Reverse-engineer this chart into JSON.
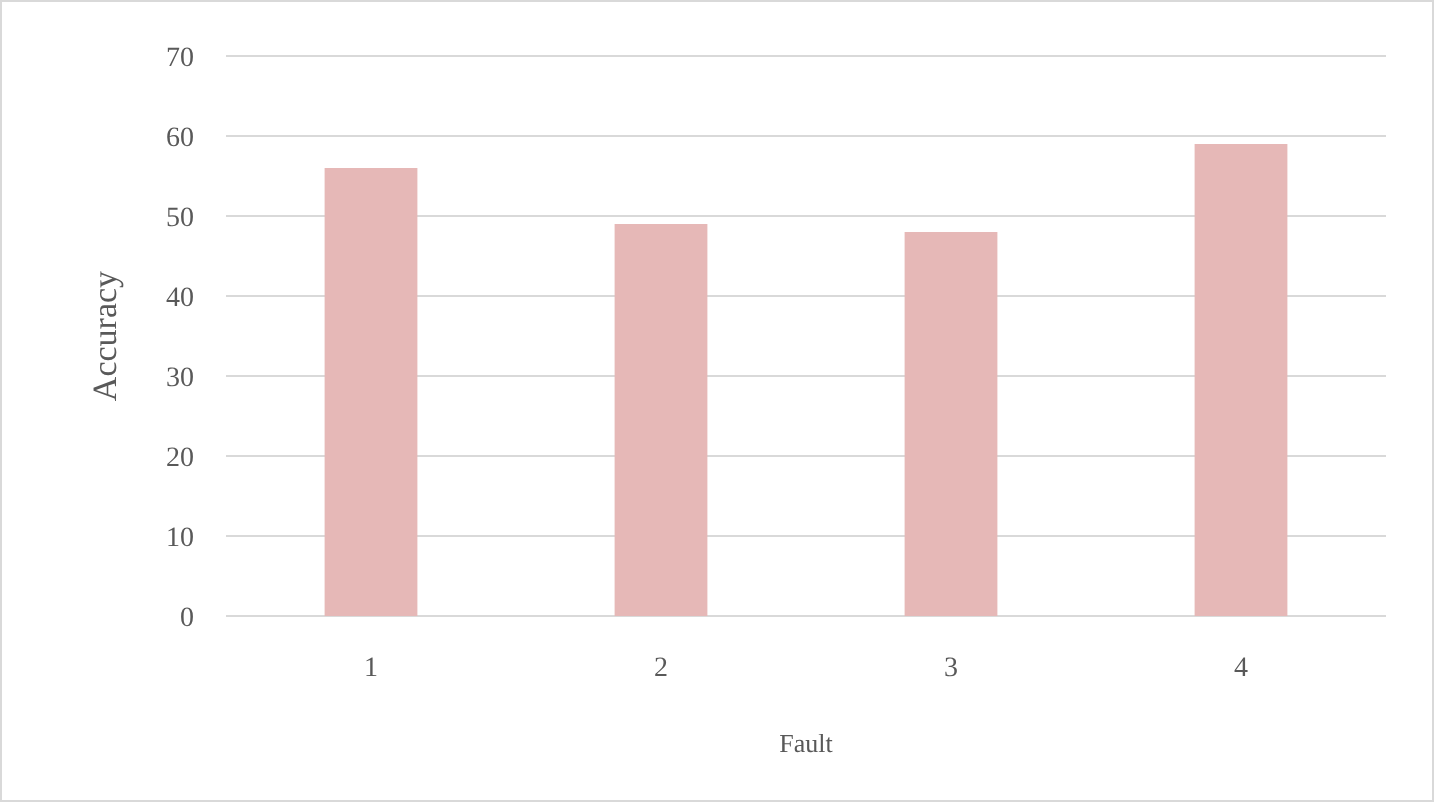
{
  "chart_data": {
    "type": "bar",
    "xlabel": "Fault",
    "ylabel": "Accuracy",
    "categories": [
      "1",
      "2",
      "3",
      "4"
    ],
    "values": [
      56,
      49,
      48,
      59
    ],
    "color": "#e6b8b7",
    "ylim": [
      0,
      70
    ],
    "yticks": [
      0,
      10,
      20,
      30,
      40,
      50,
      60,
      70
    ],
    "grid": "y"
  }
}
